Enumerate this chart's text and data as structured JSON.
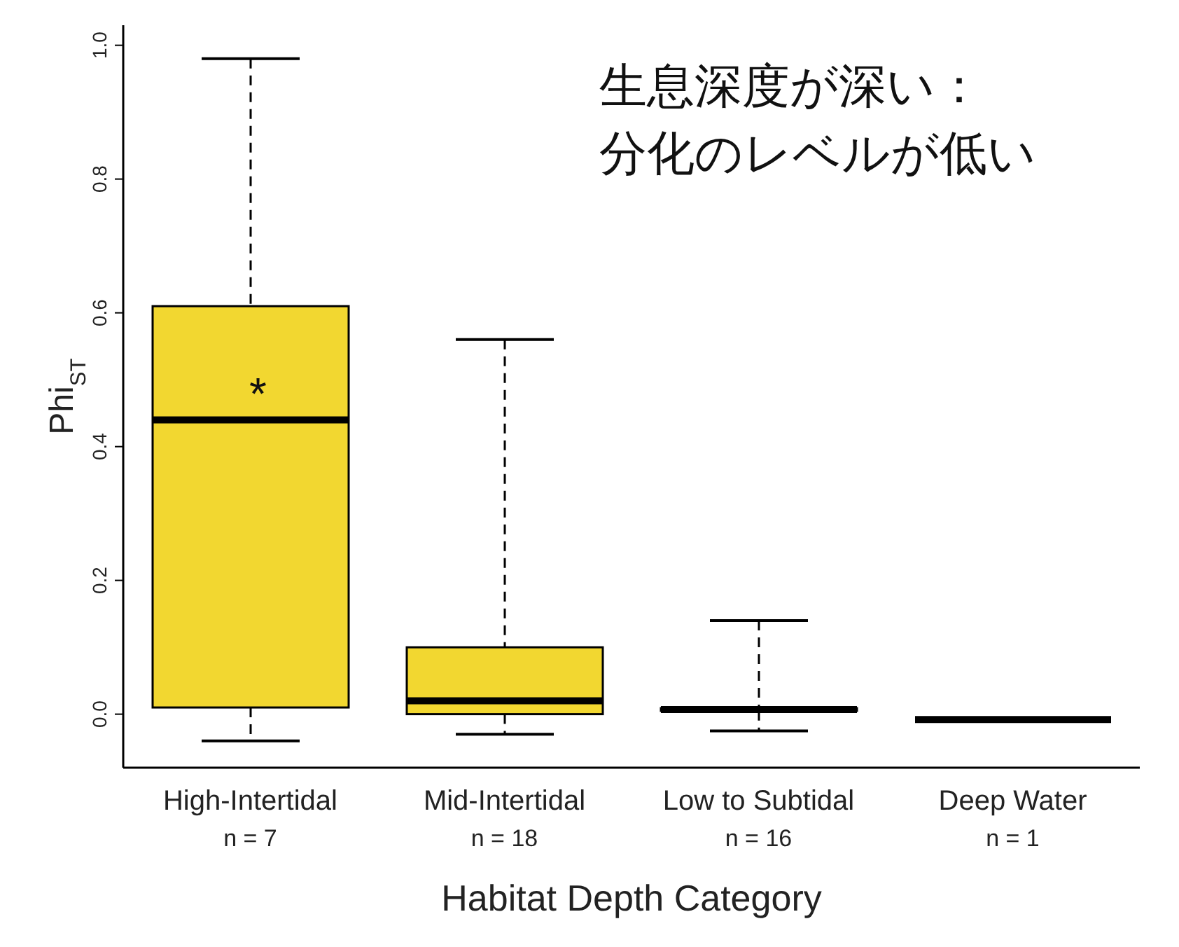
{
  "chart_data": {
    "type": "box",
    "categories": [
      "High-Intertidal\nn = 7",
      "Mid-Intertidal\nn = 18",
      "Low to Subtidal\nn = 16",
      "Deep Water\nn = 1"
    ],
    "boxes": [
      {
        "low": -0.04,
        "q1": 0.01,
        "median": 0.44,
        "q3": 0.61,
        "high": 0.98
      },
      {
        "low": -0.03,
        "q1": 0.0,
        "median": 0.02,
        "q3": 0.1,
        "high": 0.56
      },
      {
        "low": -0.025,
        "q1": 0.005,
        "median": 0.007,
        "q3": 0.009,
        "high": 0.14
      },
      {
        "low": -0.008,
        "q1": -0.008,
        "median": -0.008,
        "q3": -0.008,
        "high": -0.008
      }
    ],
    "colors": [
      "#f2d730",
      "#f2d730",
      "#f2d730",
      "#000000"
    ],
    "xlabel": "Habitat Depth Category",
    "ylabel": "Phi$_{ST}$",
    "ylim": [
      -0.08,
      1.03
    ],
    "yticks": [
      {
        "value": 0,
        "label": "0.0"
      },
      0.2,
      0.4,
      0.6,
      0.8,
      {
        "value": 1,
        "label": "1.0"
      }
    ],
    "annotations": [
      "*",
      "生息深度が深い：",
      "分化のレベルが低い"
    ]
  }
}
